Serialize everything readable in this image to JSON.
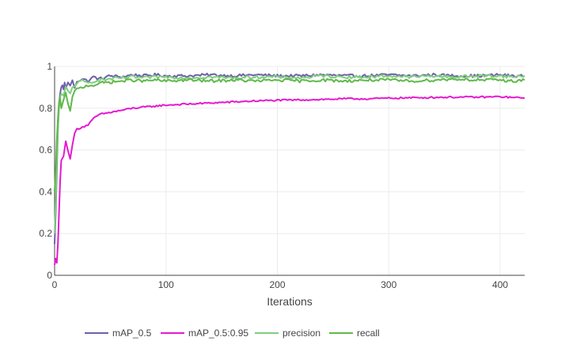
{
  "chart_data": {
    "type": "line",
    "xlabel": "Iterations",
    "ylabel": "",
    "xlim": [
      0,
      422
    ],
    "ylim": [
      0,
      1
    ],
    "x_ticks": [
      0,
      100,
      200,
      300,
      400
    ],
    "y_ticks": [
      0,
      0.2,
      0.4,
      0.6,
      0.8,
      1
    ],
    "grid": true,
    "legend_position": "bottom",
    "series": [
      {
        "name": "mAP_0.5",
        "color": "#6f60aa",
        "x": [
          0,
          1,
          2,
          3,
          4,
          5,
          6,
          7,
          8,
          9,
          10,
          12,
          14,
          16,
          18,
          20,
          25,
          30,
          35,
          40,
          50,
          60,
          70,
          80,
          90,
          100,
          120,
          140,
          160,
          180,
          200,
          220,
          240,
          260,
          280,
          300,
          320,
          340,
          360,
          380,
          400,
          410,
          422
        ],
        "y": [
          0.15,
          0.3,
          0.5,
          0.7,
          0.82,
          0.87,
          0.9,
          0.91,
          0.89,
          0.92,
          0.9,
          0.92,
          0.91,
          0.93,
          0.9,
          0.93,
          0.94,
          0.93,
          0.95,
          0.94,
          0.955,
          0.95,
          0.96,
          0.955,
          0.96,
          0.955,
          0.955,
          0.96,
          0.955,
          0.96,
          0.955,
          0.955,
          0.96,
          0.955,
          0.955,
          0.96,
          0.955,
          0.96,
          0.955,
          0.955,
          0.96,
          0.955,
          0.955
        ]
      },
      {
        "name": "mAP_0.5:0.95",
        "color": "#e619cf",
        "x": [
          0,
          1,
          2,
          3,
          4,
          5,
          6,
          8,
          10,
          12,
          14,
          16,
          18,
          20,
          25,
          30,
          35,
          40,
          50,
          60,
          70,
          80,
          90,
          100,
          120,
          140,
          160,
          180,
          200,
          220,
          240,
          260,
          280,
          300,
          320,
          340,
          360,
          380,
          400,
          410,
          422
        ],
        "y": [
          0.05,
          0.08,
          0.06,
          0.15,
          0.3,
          0.45,
          0.55,
          0.57,
          0.64,
          0.6,
          0.56,
          0.62,
          0.68,
          0.7,
          0.71,
          0.72,
          0.75,
          0.77,
          0.78,
          0.79,
          0.8,
          0.805,
          0.81,
          0.815,
          0.82,
          0.825,
          0.83,
          0.835,
          0.838,
          0.84,
          0.842,
          0.845,
          0.845,
          0.848,
          0.85,
          0.852,
          0.853,
          0.853,
          0.855,
          0.852,
          0.848
        ]
      },
      {
        "name": "precision",
        "color": "#7fcf7f",
        "x": [
          0,
          1,
          2,
          3,
          4,
          5,
          6,
          8,
          10,
          12,
          14,
          16,
          18,
          20,
          25,
          30,
          35,
          40,
          50,
          60,
          70,
          80,
          90,
          100,
          120,
          140,
          160,
          180,
          200,
          220,
          240,
          260,
          280,
          300,
          320,
          340,
          360,
          380,
          400,
          410,
          422
        ],
        "y": [
          0.2,
          0.35,
          0.55,
          0.7,
          0.8,
          0.85,
          0.87,
          0.86,
          0.9,
          0.88,
          0.87,
          0.9,
          0.91,
          0.92,
          0.93,
          0.92,
          0.93,
          0.935,
          0.94,
          0.945,
          0.95,
          0.945,
          0.95,
          0.95,
          0.945,
          0.95,
          0.945,
          0.95,
          0.95,
          0.945,
          0.955,
          0.95,
          0.95,
          0.955,
          0.95,
          0.955,
          0.95,
          0.955,
          0.955,
          0.95,
          0.955
        ]
      },
      {
        "name": "recall",
        "color": "#5fb94a",
        "x": [
          0,
          1,
          2,
          3,
          4,
          5,
          6,
          8,
          10,
          12,
          14,
          16,
          18,
          20,
          25,
          30,
          35,
          40,
          50,
          60,
          70,
          80,
          90,
          100,
          120,
          140,
          160,
          180,
          200,
          220,
          240,
          260,
          280,
          300,
          320,
          340,
          360,
          380,
          400,
          410,
          422
        ],
        "y": [
          0.4,
          0.5,
          0.65,
          0.75,
          0.83,
          0.85,
          0.8,
          0.84,
          0.87,
          0.82,
          0.78,
          0.86,
          0.88,
          0.89,
          0.9,
          0.91,
          0.91,
          0.92,
          0.925,
          0.93,
          0.935,
          0.93,
          0.935,
          0.93,
          0.935,
          0.93,
          0.935,
          0.93,
          0.935,
          0.93,
          0.935,
          0.93,
          0.935,
          0.935,
          0.93,
          0.935,
          0.94,
          0.935,
          0.935,
          0.93,
          0.935
        ]
      }
    ]
  }
}
